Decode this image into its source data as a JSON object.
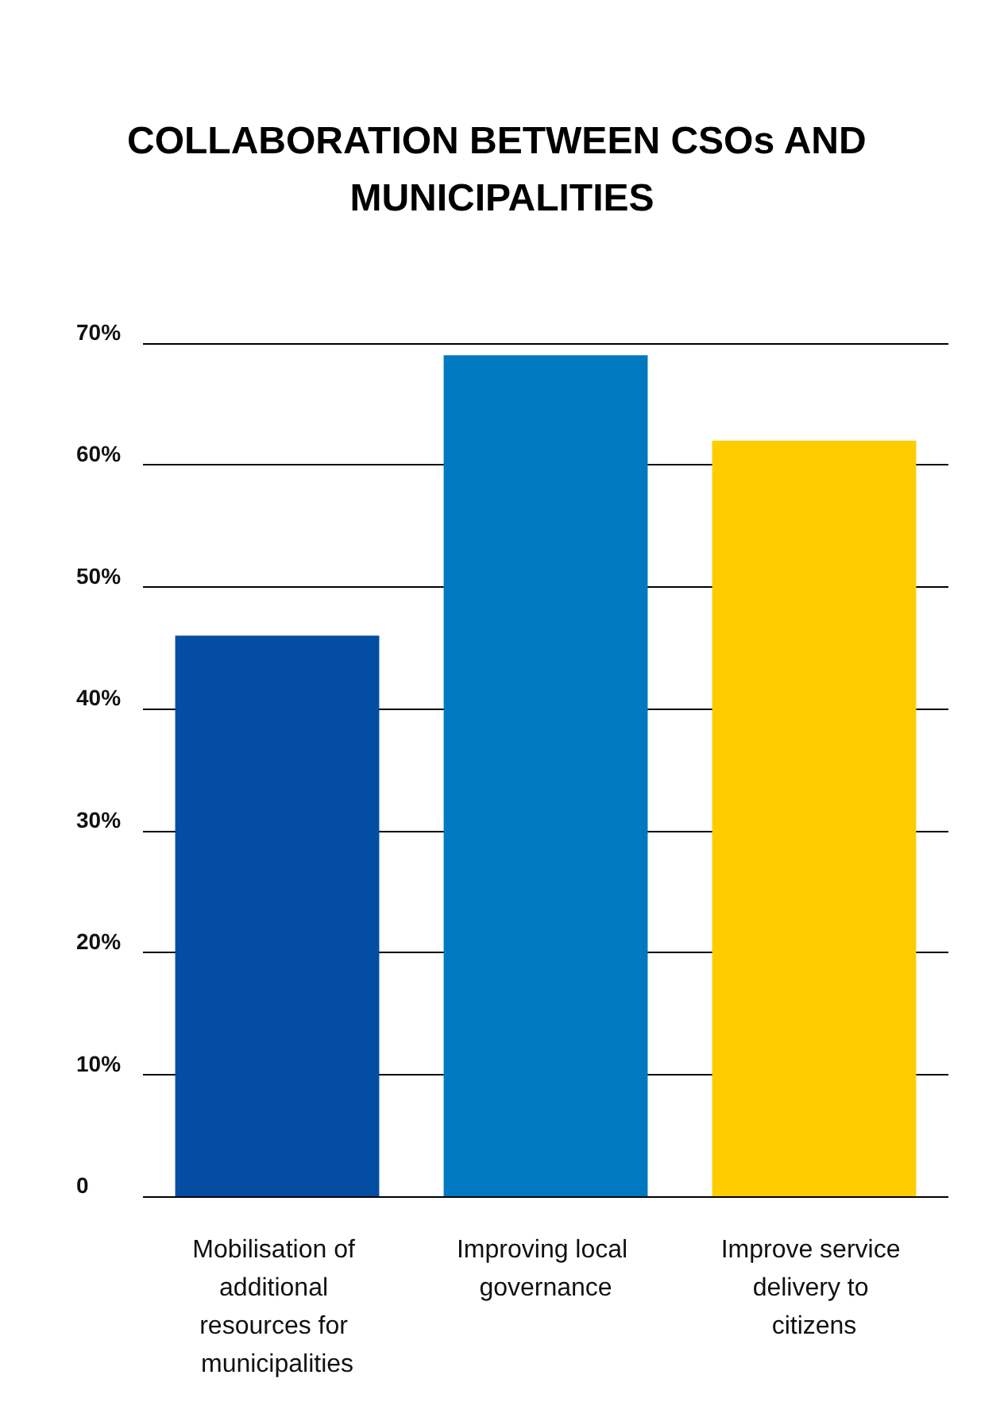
{
  "chart_data": {
    "type": "bar",
    "title": "COLLABORATION BETWEEN CSOs AND MUNICIPALITIES",
    "categories": [
      "Mobilisation of additional resources for municipalities",
      "Improving local governance",
      "Improve service delivery to citizens"
    ],
    "values": [
      46,
      69,
      62
    ],
    "colors": [
      "#034ea2",
      "#0079c1",
      "#ffcc00"
    ],
    "ylim": [
      0,
      70
    ],
    "yticks": [
      0,
      {
        "value": 10,
        "label": "10%"
      },
      {
        "value": 20,
        "label": "20%"
      },
      {
        "value": 30,
        "label": "30%"
      },
      {
        "value": 40,
        "label": "40%"
      },
      {
        "value": 50,
        "label": "50%"
      },
      {
        "value": 60,
        "label": "60%"
      },
      {
        "value": 70,
        "label": "70%"
      }
    ],
    "grid": "y"
  }
}
